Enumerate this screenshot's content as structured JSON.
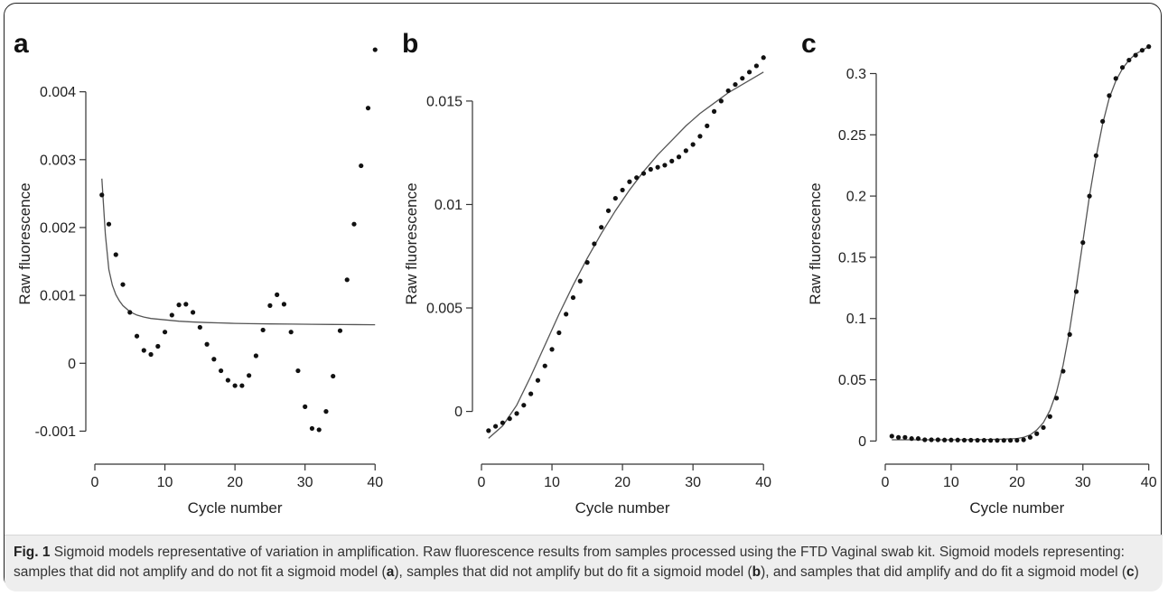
{
  "caption": {
    "label": "Fig. 1",
    "title": "Sigmoid models representative of variation in amplification.",
    "body_1": "Raw fluorescence results from samples processed using the FTD Vaginal swab kit. Sigmoid models representing: samples that did not amplify and do not fit a sigmoid model (",
    "ref_a": "a",
    "body_2": "), samples that did not amplify but do fit a sigmoid model (",
    "ref_b": "b",
    "body_3": "), and samples that did amplify and do fit a sigmoid model (",
    "ref_c": "c",
    "body_4": ")"
  },
  "chart_data": [
    {
      "panel": "a",
      "type": "scatter",
      "xlabel": "Cycle number",
      "ylabel": "Raw fluorescence",
      "xlim": [
        0,
        41
      ],
      "ylim": [
        -0.00138,
        0.0049
      ],
      "xticks": [
        0,
        10,
        20,
        30,
        40
      ],
      "xtick_labels": [
        "0",
        "10",
        "20",
        "30",
        "40"
      ],
      "yticks": [
        -0.001,
        0,
        0.001,
        0.002,
        0.003,
        0.004
      ],
      "ytick_labels": [
        "-0.001",
        "0",
        "0.001",
        "0.002",
        "0.003",
        "0.004"
      ],
      "points_x": [
        1,
        2,
        3,
        4,
        5,
        6,
        7,
        8,
        9,
        10,
        11,
        12,
        13,
        14,
        15,
        16,
        17,
        18,
        19,
        20,
        21,
        22,
        23,
        24,
        25,
        26,
        27,
        28,
        29,
        30,
        31,
        32,
        33,
        34,
        35,
        36,
        37,
        38,
        39,
        40
      ],
      "points_y": [
        0.00248,
        0.00205,
        0.0016,
        0.00116,
        0.00075,
        0.0004,
        0.00019,
        0.00013,
        0.00025,
        0.00046,
        0.00071,
        0.00086,
        0.00087,
        0.00075,
        0.00053,
        0.00028,
        6e-05,
        -0.00011,
        -0.00025,
        -0.00033,
        -0.00033,
        -0.00018,
        0.00011,
        0.00049,
        0.00085,
        0.00101,
        0.00087,
        0.00046,
        -0.00011,
        -0.00064,
        -0.00096,
        -0.00098,
        -0.00071,
        -0.00019,
        0.00048,
        0.00123,
        0.00205,
        0.00291,
        0.00376,
        0.00462
      ],
      "fit_x": [
        1,
        1.5,
        2,
        2.5,
        3,
        3.5,
        4,
        5,
        6,
        7,
        8,
        10,
        12,
        14,
        16,
        18,
        20,
        22,
        25,
        28,
        31,
        34,
        37,
        40
      ],
      "fit_y": [
        0.00272,
        0.0019,
        0.00138,
        0.00115,
        0.00101,
        0.00092,
        0.00085,
        0.00076,
        0.00071,
        0.00068,
        0.00066,
        0.00064,
        0.00062,
        0.000608,
        0.0006,
        0.000594,
        0.000588,
        0.000584,
        0.00058,
        0.000577,
        0.000574,
        0.000572,
        0.00057,
        0.000568
      ]
    },
    {
      "panel": "b",
      "type": "scatter",
      "xlabel": "Cycle number",
      "ylabel": "Raw fluorescence",
      "xlim": [
        0,
        41
      ],
      "ylim": [
        -0.0022,
        0.0184
      ],
      "xticks": [
        0,
        10,
        20,
        30,
        40
      ],
      "xtick_labels": [
        "0",
        "10",
        "20",
        "30",
        "40"
      ],
      "yticks": [
        0,
        0.005,
        0.01,
        0.015
      ],
      "ytick_labels": [
        "0",
        "0.005",
        "0.01",
        "0.015"
      ],
      "points_x": [
        1,
        2,
        3,
        4,
        5,
        6,
        7,
        8,
        9,
        10,
        11,
        12,
        13,
        14,
        15,
        16,
        17,
        18,
        19,
        20,
        21,
        22,
        23,
        24,
        25,
        26,
        27,
        28,
        29,
        30,
        31,
        32,
        33,
        34,
        35,
        36,
        37,
        38,
        39,
        40
      ],
      "points_y": [
        -0.00093,
        -0.00072,
        -0.00055,
        -0.00035,
        -0.0001,
        0.0003,
        0.00085,
        0.0015,
        0.0022,
        0.003,
        0.0038,
        0.0047,
        0.0055,
        0.0063,
        0.0072,
        0.0081,
        0.0089,
        0.0097,
        0.0103,
        0.0107,
        0.0111,
        0.0113,
        0.0115,
        0.0117,
        0.0118,
        0.0119,
        0.0121,
        0.0123,
        0.0126,
        0.0129,
        0.0133,
        0.0138,
        0.0145,
        0.015,
        0.0155,
        0.0158,
        0.0161,
        0.0164,
        0.0167,
        0.0171
      ],
      "fit_x": [
        1,
        3,
        5,
        7,
        9,
        11,
        13,
        15,
        17,
        19,
        21,
        23,
        25,
        27,
        29,
        31,
        33,
        35,
        37,
        40
      ],
      "fit_y": [
        -0.0013,
        -0.0007,
        0.0003,
        0.0017,
        0.0032,
        0.0047,
        0.0061,
        0.0074,
        0.0086,
        0.0097,
        0.0107,
        0.0116,
        0.0124,
        0.0131,
        0.0138,
        0.0144,
        0.0149,
        0.0154,
        0.0158,
        0.0164
      ]
    },
    {
      "panel": "c",
      "type": "scatter",
      "xlabel": "Cycle number",
      "ylabel": "Raw fluorescence",
      "xlim": [
        0,
        41
      ],
      "ylim": [
        -0.013,
        0.335
      ],
      "xticks": [
        0,
        10,
        20,
        30,
        40
      ],
      "xtick_labels": [
        "0",
        "10",
        "20",
        "30",
        "40"
      ],
      "yticks": [
        0,
        0.05,
        0.1,
        0.15,
        0.2,
        0.25,
        0.3
      ],
      "ytick_labels": [
        "0",
        "0.05",
        "0.1",
        "0.15",
        "0.2",
        "0.25",
        "0.3"
      ],
      "points_x": [
        1,
        2,
        3,
        4,
        5,
        6,
        7,
        8,
        9,
        10,
        11,
        12,
        13,
        14,
        15,
        16,
        17,
        18,
        19,
        20,
        21,
        22,
        23,
        24,
        25,
        26,
        27,
        28,
        29,
        30,
        31,
        32,
        33,
        34,
        35,
        36,
        37,
        38,
        39,
        40
      ],
      "points_y": [
        0.004,
        0.003,
        0.003,
        0.002,
        0.002,
        0.001,
        0.001,
        0.001,
        0.0008,
        0.0008,
        0.0008,
        0.0007,
        0.0007,
        0.0006,
        0.0006,
        0.0005,
        0.0005,
        0.0005,
        0.0005,
        0.0006,
        0.001,
        0.003,
        0.006,
        0.011,
        0.02,
        0.035,
        0.057,
        0.087,
        0.122,
        0.162,
        0.2,
        0.233,
        0.261,
        0.282,
        0.296,
        0.305,
        0.311,
        0.315,
        0.319,
        0.322
      ],
      "fit_x": [
        1,
        5,
        10,
        15,
        18,
        20,
        21,
        22,
        23,
        24,
        25,
        26,
        27,
        28,
        29,
        30,
        31,
        32,
        33,
        34,
        35,
        36,
        37,
        38,
        39,
        40
      ],
      "fit_y": [
        0.001,
        0.001,
        0.001,
        0.0012,
        0.0015,
        0.002,
        0.003,
        0.005,
        0.009,
        0.015,
        0.025,
        0.04,
        0.062,
        0.091,
        0.126,
        0.163,
        0.2,
        0.232,
        0.259,
        0.28,
        0.294,
        0.304,
        0.311,
        0.316,
        0.319,
        0.322
      ]
    }
  ]
}
